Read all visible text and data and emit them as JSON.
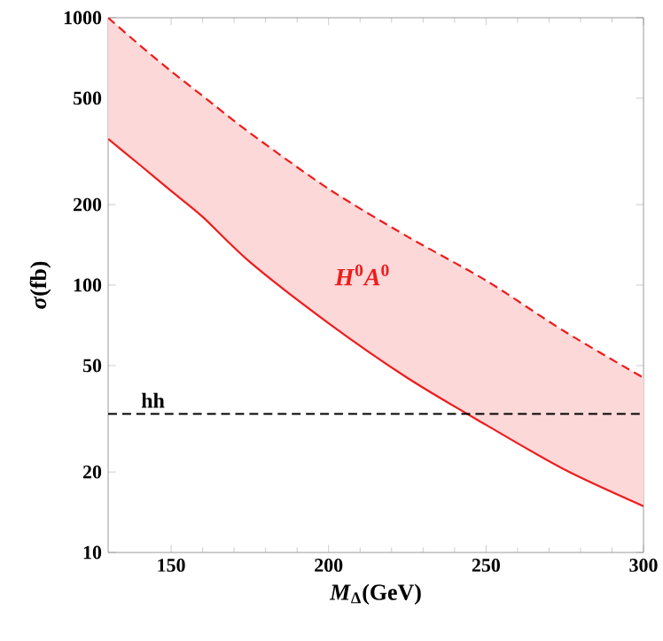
{
  "chart_data": {
    "type": "line",
    "xlabel": "*M*$_{Δ}$(GeV)",
    "ylabel": "*σ*(fb)",
    "x": [
      130,
      140,
      150,
      160,
      175,
      200,
      225,
      250,
      275,
      300
    ],
    "series": [
      {
        "color": "#ee1c1c",
        "line_style": "solid",
        "values": [
          352,
          282,
          225,
          180,
          122,
          72,
          45,
          30,
          20.4,
          14.9
        ],
        "lower": [
          352,
          282,
          225,
          180,
          122,
          72,
          45,
          30,
          20.4,
          14.9
        ],
        "upper": [
          1000,
          790,
          631,
          510,
          371,
          229,
          152,
          104,
          67,
          45
        ]
      },
      {
        "color": "#ee1c1c",
        "line_style": "dashed",
        "values": [
          1000,
          790,
          631,
          510,
          371,
          229,
          152,
          104,
          67,
          45
        ]
      }
    ],
    "annotations": [
      "*H*$^{0}$*A*$^{0}$"
    ],
    "ref_lines": [
      {
        "axis": "y",
        "value": 33,
        "label": "hh",
        "color": "#000000",
        "line_style": "dashed"
      }
    ],
    "log": "y",
    "xlim": [
      130,
      300
    ],
    "ylim": [
      10,
      1000
    ],
    "xticks": [
      150,
      200,
      250,
      300
    ],
    "yticks": [
      10,
      20,
      50,
      100,
      200,
      500,
      1000
    ],
    "marker": "none"
  }
}
